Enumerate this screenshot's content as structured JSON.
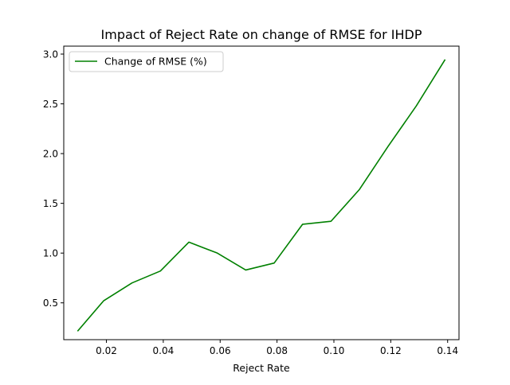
{
  "chart_data": {
    "type": "line",
    "title": "Impact of Reject Rate on change of RMSE for IHDP",
    "xlabel": "Reject Rate",
    "ylabel": "",
    "xlim": [
      0.005,
      0.144
    ],
    "ylim": [
      0.13,
      3.08
    ],
    "xticks": [
      0.02,
      0.04,
      0.06,
      0.08,
      0.1,
      0.12,
      0.14
    ],
    "xtick_labels": [
      "0.02",
      "0.04",
      "0.06",
      "0.08",
      "0.10",
      "0.12",
      "0.14"
    ],
    "yticks": [
      0.5,
      1.0,
      1.5,
      2.0,
      2.5,
      3.0
    ],
    "ytick_labels": [
      "0.5",
      "1.0",
      "1.5",
      "2.0",
      "2.5",
      "3.0"
    ],
    "grid": false,
    "legend": "top-left",
    "series": [
      {
        "name": "Change of RMSE (%)",
        "color": "#008000",
        "x": [
          0.01,
          0.019,
          0.029,
          0.039,
          0.049,
          0.059,
          0.069,
          0.079,
          0.089,
          0.099,
          0.109,
          0.119,
          0.129,
          0.139
        ],
        "y": [
          0.22,
          0.52,
          0.7,
          0.82,
          1.11,
          1.0,
          0.83,
          0.9,
          1.29,
          1.32,
          1.64,
          2.07,
          2.48,
          2.94
        ]
      }
    ]
  }
}
